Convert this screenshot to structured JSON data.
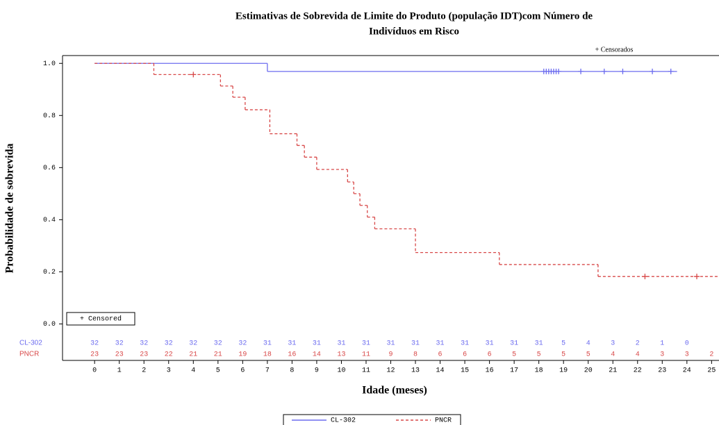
{
  "chart_data": {
    "type": "km",
    "title": "Estimativas de Sobrevida de Limite do Produto (população IDT)com Número de",
    "subtitle": "Indivíduos em Risco",
    "xlabel": "Idade (meses)",
    "ylabel": "Probabilidade de sobrevida",
    "censor_note": "+ Censorados",
    "censor_box": "+ Censored",
    "xlim": [
      -1.3,
      25.3
    ],
    "ylim": [
      -0.14,
      1.03
    ],
    "xticks": [
      0,
      1,
      2,
      3,
      4,
      5,
      6,
      7,
      8,
      9,
      10,
      11,
      12,
      13,
      14,
      15,
      16,
      17,
      18,
      19,
      20,
      21,
      22,
      23,
      24,
      25
    ],
    "yticks": [
      {
        "value": 0,
        "label": "0.0"
      },
      {
        "value": 0.2,
        "label": "0.2"
      },
      {
        "value": 0.4,
        "label": "0.4"
      },
      {
        "value": 0.6,
        "label": "0.6"
      },
      {
        "value": 0.8,
        "label": "0.8"
      },
      {
        "value": 1,
        "label": "1.0"
      }
    ],
    "series": [
      {
        "name": "CL-302",
        "color": "#6b6bef",
        "dash": false,
        "x": [
          0,
          7,
          23.6
        ],
        "values": [
          1,
          0.969,
          0.969
        ],
        "censor_x": [
          18.2,
          18.3,
          18.4,
          18.5,
          18.6,
          18.7,
          18.8,
          19.7,
          20.65,
          21.4,
          22.6,
          23.35
        ],
        "censor_values": [
          0.969,
          0.969,
          0.969,
          0.969,
          0.969,
          0.969,
          0.969,
          0.969,
          0.969,
          0.969,
          0.969,
          0.969
        ],
        "at_risk": [
          32,
          32,
          32,
          32,
          32,
          32,
          32,
          31,
          31,
          31,
          31,
          31,
          31,
          31,
          31,
          31,
          31,
          31,
          31,
          5,
          4,
          3,
          2,
          1,
          0,
          null
        ]
      },
      {
        "name": "PNCR",
        "color": "#d84848",
        "dash": true,
        "x": [
          0,
          2.4,
          5.1,
          5.6,
          6.1,
          7.1,
          8.2,
          8.5,
          9.0,
          10.25,
          10.5,
          10.75,
          11.05,
          11.35,
          13.0,
          16.4,
          20.4,
          25.3
        ],
        "values": [
          1,
          0.957,
          0.913,
          0.87,
          0.822,
          0.73,
          0.685,
          0.64,
          0.593,
          0.545,
          0.5,
          0.455,
          0.41,
          0.365,
          0.274,
          0.228,
          0.182,
          0.182
        ],
        "censor_x": [
          4.0,
          22.3,
          24.4
        ],
        "censor_values": [
          0.957,
          0.182,
          0.182
        ],
        "at_risk": [
          23,
          23,
          23,
          22,
          21,
          21,
          19,
          18,
          16,
          14,
          13,
          11,
          9,
          8,
          6,
          6,
          6,
          5,
          5,
          5,
          5,
          4,
          4,
          3,
          3,
          2
        ]
      }
    ]
  }
}
